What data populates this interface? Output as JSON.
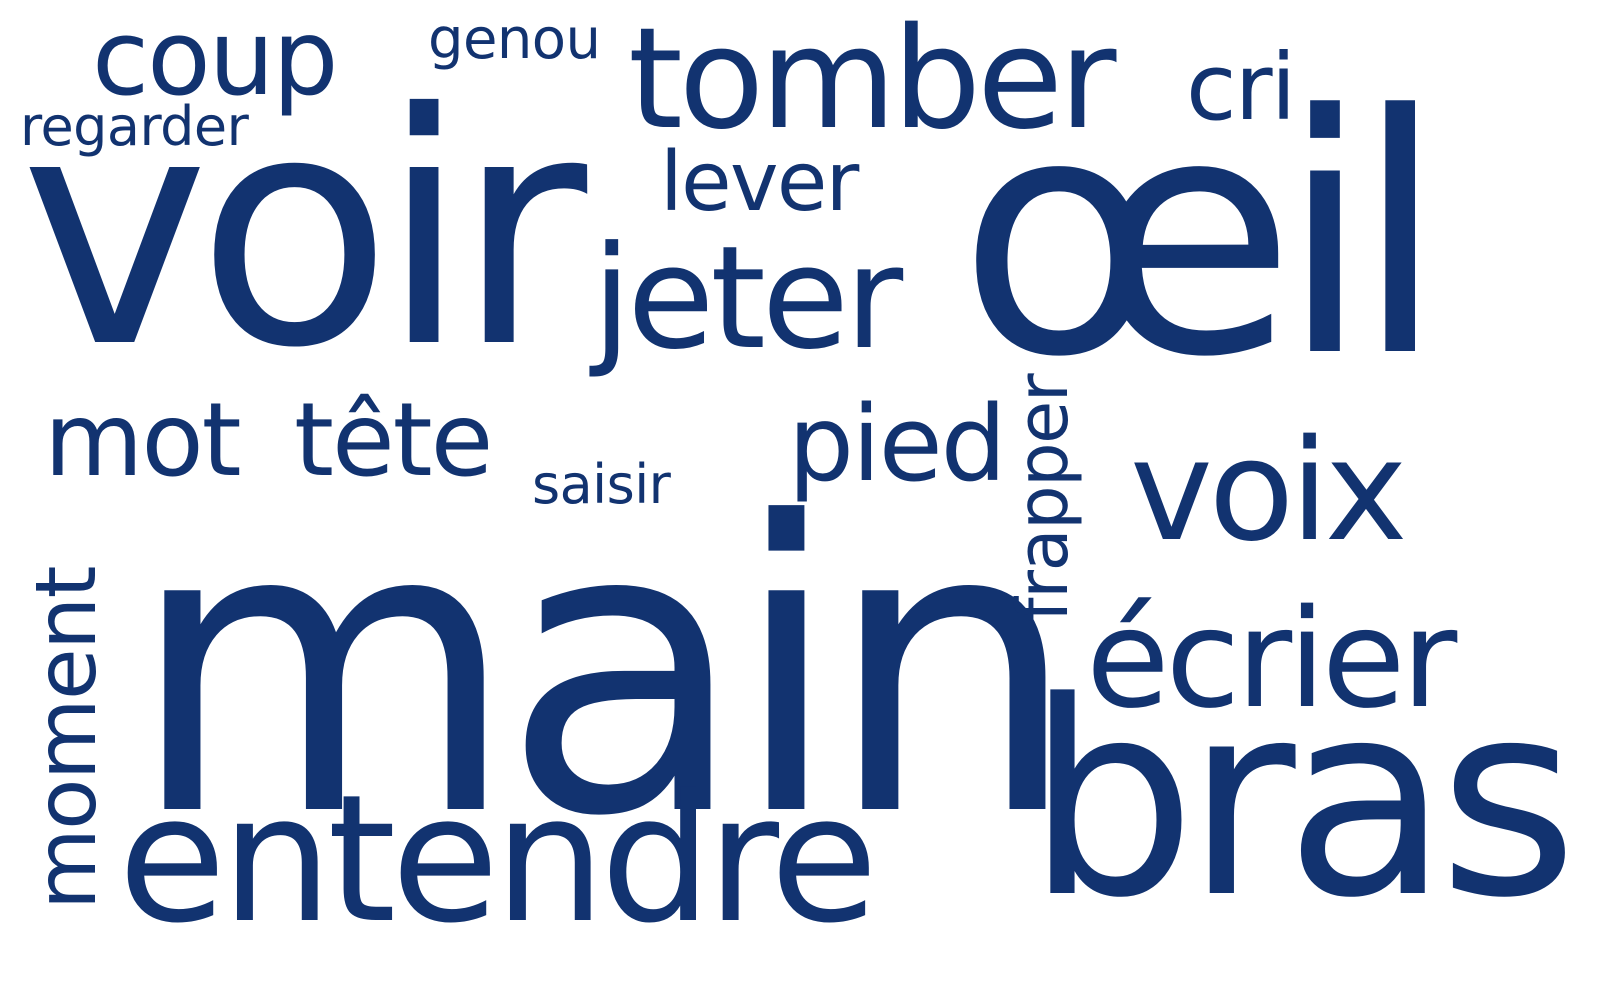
{
  "word_cloud": {
    "text_color": "#123370",
    "background": "#ffffff",
    "words": [
      {
        "text": "main"
      },
      {
        "text": "voir"
      },
      {
        "text": "œil"
      },
      {
        "text": "bras"
      },
      {
        "text": "entendre"
      },
      {
        "text": "tomber"
      },
      {
        "text": "jeter"
      },
      {
        "text": "voix"
      },
      {
        "text": "écrier"
      },
      {
        "text": "coup"
      },
      {
        "text": "mot"
      },
      {
        "text": "tête"
      },
      {
        "text": "pied"
      },
      {
        "text": "cri"
      },
      {
        "text": "lever"
      },
      {
        "text": "moment"
      },
      {
        "text": "frapper"
      },
      {
        "text": "genou"
      },
      {
        "text": "regarder"
      },
      {
        "text": "saisir"
      }
    ]
  }
}
